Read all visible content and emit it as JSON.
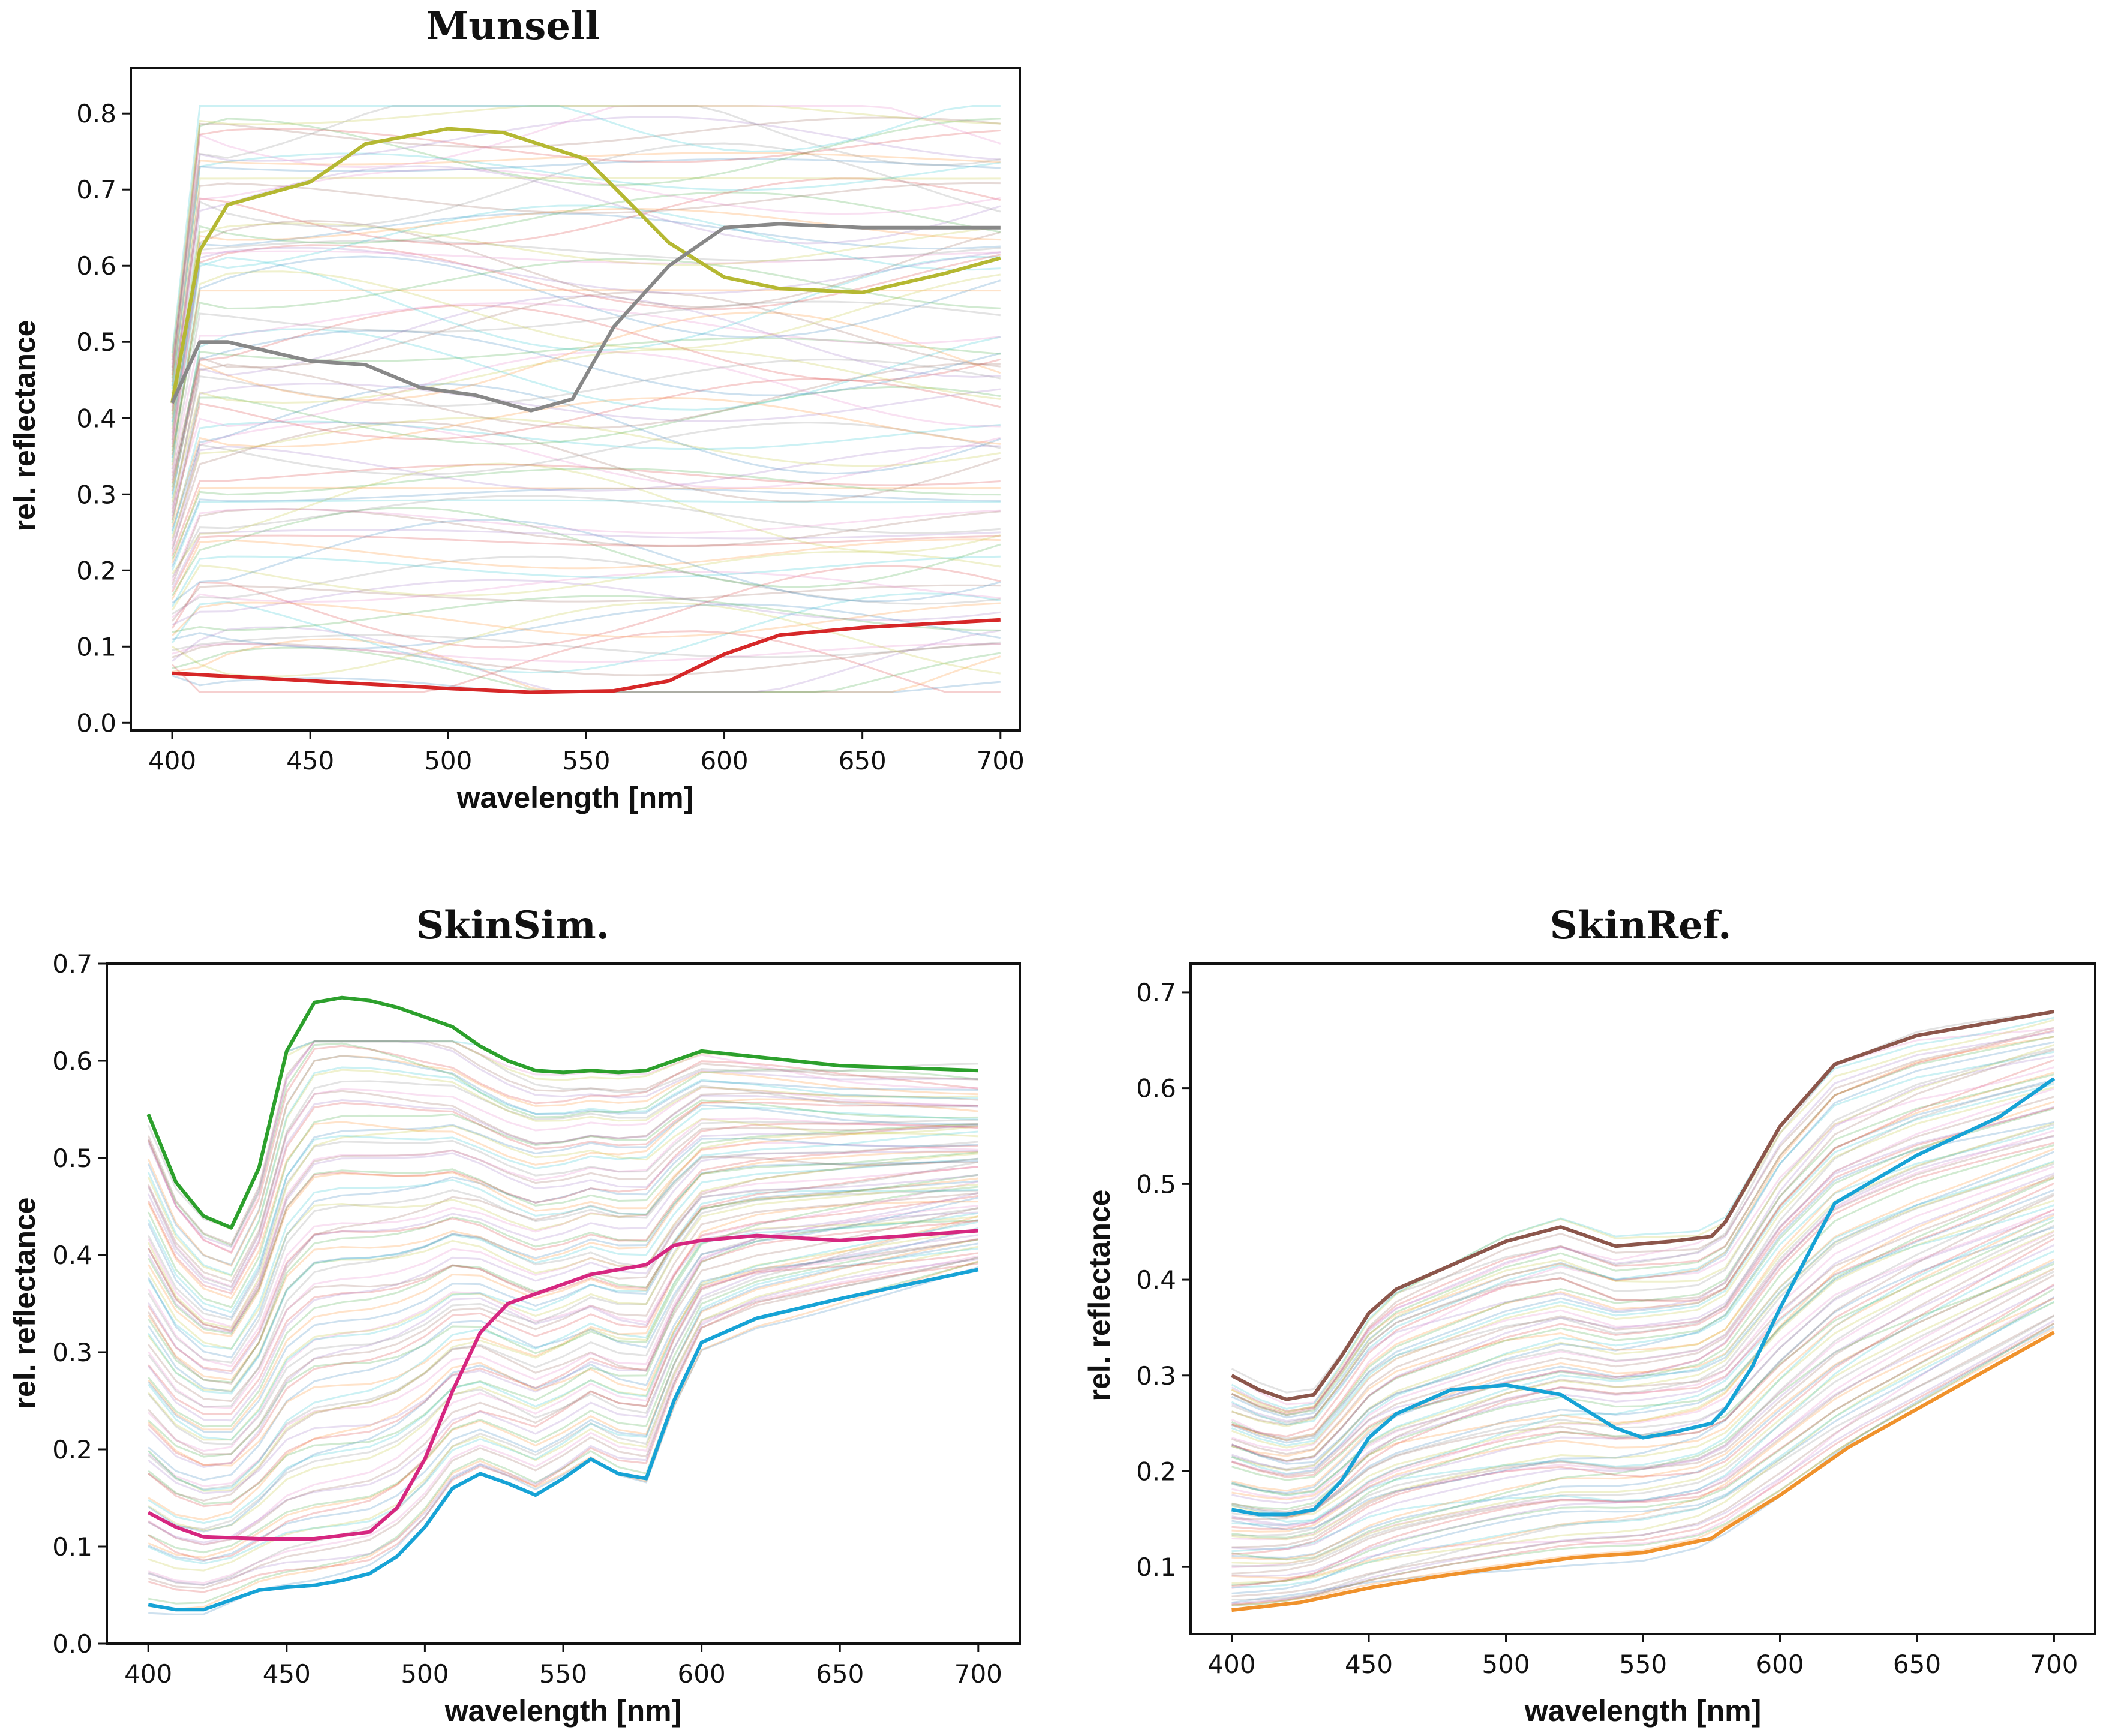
{
  "chart_data": [
    {
      "id": "munsell",
      "type": "line",
      "title": "Munsell",
      "xlabel": "wavelength [nm]",
      "ylabel": "rel. reflectance",
      "xlim": [
        385,
        707
      ],
      "ylim": [
        -0.01,
        0.86
      ],
      "xticks": [
        400,
        450,
        500,
        550,
        600,
        650,
        700
      ],
      "yticks": [
        0.0,
        0.1,
        0.2,
        0.3,
        0.4,
        0.5,
        0.6,
        0.7,
        0.8
      ],
      "tick_format": "1",
      "background_bundle": {
        "count": 1269,
        "description": "Munsell chip reflectance spectra, faint multicolor lines",
        "y_range": [
          0.04,
          0.81
        ]
      },
      "series": [
        {
          "name": "yellow-green",
          "color": "#b5b832",
          "x": [
            400,
            410,
            420,
            450,
            470,
            500,
            520,
            550,
            580,
            600,
            620,
            650,
            680,
            700
          ],
          "y": [
            0.42,
            0.62,
            0.68,
            0.71,
            0.76,
            0.78,
            0.775,
            0.74,
            0.63,
            0.585,
            0.57,
            0.565,
            0.59,
            0.61
          ]
        },
        {
          "name": "gray",
          "color": "#888888",
          "x": [
            400,
            410,
            420,
            450,
            470,
            490,
            510,
            530,
            545,
            560,
            580,
            600,
            620,
            650,
            700
          ],
          "y": [
            0.42,
            0.5,
            0.5,
            0.475,
            0.47,
            0.44,
            0.43,
            0.41,
            0.425,
            0.52,
            0.6,
            0.65,
            0.655,
            0.65,
            0.65
          ]
        },
        {
          "name": "red",
          "color": "#d62728",
          "x": [
            400,
            450,
            500,
            530,
            560,
            580,
            600,
            620,
            650,
            700
          ],
          "y": [
            0.065,
            0.055,
            0.045,
            0.04,
            0.042,
            0.055,
            0.09,
            0.115,
            0.125,
            0.135
          ]
        }
      ]
    },
    {
      "id": "skinsim",
      "type": "line",
      "title": "SkinSim.",
      "xlabel": "wavelength [nm]",
      "ylabel": "rel. reflectance",
      "xlim": [
        385,
        715
      ],
      "ylim": [
        0.0,
        0.7
      ],
      "xticks": [
        400,
        450,
        500,
        550,
        600,
        650,
        700
      ],
      "yticks": [
        0.0,
        0.1,
        0.2,
        0.3,
        0.4,
        0.5,
        0.6,
        0.7
      ],
      "tick_format": "1",
      "background_bundle": {
        "count": 1000,
        "description": "simulated skin reflectance spectra, faint gray/multicolor lines",
        "y_range": [
          0.03,
          0.62
        ]
      },
      "series": [
        {
          "name": "green",
          "color": "#2ca02c",
          "x": [
            400,
            410,
            420,
            430,
            440,
            450,
            460,
            470,
            480,
            490,
            500,
            510,
            520,
            530,
            540,
            550,
            560,
            570,
            580,
            590,
            600,
            650,
            700
          ],
          "y": [
            0.545,
            0.475,
            0.44,
            0.428,
            0.49,
            0.61,
            0.66,
            0.665,
            0.662,
            0.655,
            0.645,
            0.635,
            0.615,
            0.6,
            0.59,
            0.588,
            0.59,
            0.588,
            0.59,
            0.6,
            0.61,
            0.595,
            0.59
          ]
        },
        {
          "name": "magenta",
          "color": "#d62780",
          "x": [
            400,
            410,
            420,
            440,
            460,
            480,
            490,
            500,
            510,
            520,
            530,
            540,
            560,
            580,
            590,
            600,
            620,
            650,
            700
          ],
          "y": [
            0.135,
            0.12,
            0.11,
            0.108,
            0.108,
            0.115,
            0.14,
            0.19,
            0.26,
            0.32,
            0.35,
            0.36,
            0.38,
            0.39,
            0.41,
            0.415,
            0.42,
            0.415,
            0.425
          ]
        },
        {
          "name": "cyan",
          "color": "#17a3d6",
          "x": [
            400,
            410,
            420,
            430,
            440,
            450,
            460,
            470,
            480,
            490,
            500,
            510,
            520,
            530,
            540,
            550,
            560,
            570,
            580,
            590,
            600,
            620,
            650,
            700
          ],
          "y": [
            0.04,
            0.035,
            0.035,
            0.045,
            0.055,
            0.058,
            0.06,
            0.065,
            0.072,
            0.09,
            0.12,
            0.16,
            0.175,
            0.165,
            0.153,
            0.17,
            0.19,
            0.175,
            0.17,
            0.25,
            0.31,
            0.335,
            0.355,
            0.385
          ]
        }
      ]
    },
    {
      "id": "skinref",
      "type": "line",
      "title": "SkinRef.",
      "xlabel": "wavelength [nm]",
      "ylabel": "rel. reflectance",
      "xlim": [
        385,
        715
      ],
      "ylim": [
        0.03,
        0.73
      ],
      "xticks": [
        400,
        450,
        500,
        550,
        600,
        650,
        700
      ],
      "yticks": [
        0.1,
        0.2,
        0.3,
        0.4,
        0.5,
        0.6,
        0.7
      ],
      "tick_format": "1",
      "background_bundle": {
        "count": 482,
        "description": "measured skin reflectance spectra, faint multicolor lines",
        "y_range": [
          0.06,
          0.69
        ]
      },
      "series": [
        {
          "name": "brown",
          "color": "#8c564b",
          "x": [
            400,
            410,
            420,
            430,
            440,
            450,
            460,
            480,
            500,
            520,
            540,
            560,
            575,
            580,
            590,
            600,
            620,
            650,
            680,
            700
          ],
          "y": [
            0.3,
            0.285,
            0.275,
            0.28,
            0.32,
            0.365,
            0.39,
            0.415,
            0.44,
            0.455,
            0.435,
            0.44,
            0.445,
            0.46,
            0.51,
            0.56,
            0.625,
            0.655,
            0.67,
            0.68
          ]
        },
        {
          "name": "cyan",
          "color": "#17a3d6",
          "x": [
            400,
            410,
            420,
            430,
            440,
            450,
            460,
            480,
            500,
            520,
            540,
            550,
            560,
            575,
            580,
            590,
            600,
            620,
            650,
            680,
            700
          ],
          "y": [
            0.16,
            0.155,
            0.155,
            0.16,
            0.19,
            0.235,
            0.26,
            0.285,
            0.29,
            0.28,
            0.245,
            0.235,
            0.24,
            0.25,
            0.265,
            0.31,
            0.37,
            0.48,
            0.53,
            0.57,
            0.61
          ]
        },
        {
          "name": "orange",
          "color": "#f0922c",
          "x": [
            400,
            425,
            450,
            475,
            500,
            525,
            550,
            575,
            580,
            600,
            625,
            650,
            675,
            700
          ],
          "y": [
            0.055,
            0.063,
            0.078,
            0.09,
            0.1,
            0.11,
            0.115,
            0.13,
            0.14,
            0.175,
            0.225,
            0.265,
            0.305,
            0.345
          ]
        }
      ]
    }
  ]
}
